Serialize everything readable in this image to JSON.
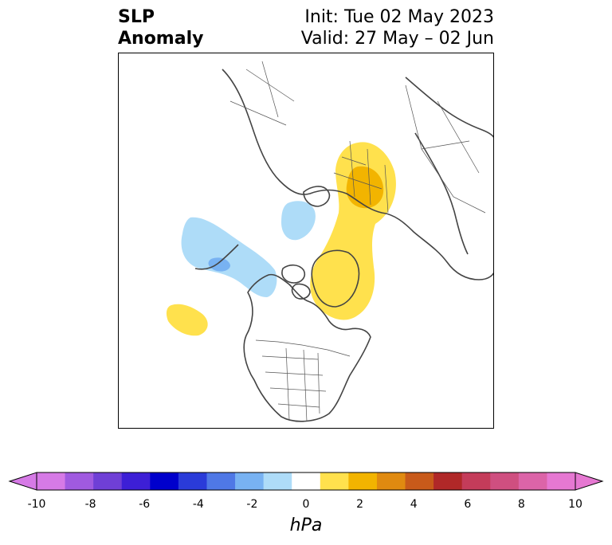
{
  "title": {
    "left_line1": "SLP",
    "left_line2": "Anomaly",
    "right_line1": "Init: Tue 02 May 2023",
    "right_line2": "Valid: 27 May – 02 Jun"
  },
  "colorbar": {
    "unit": "hPa",
    "ticks": [
      "-10",
      "-8",
      "-6",
      "-4",
      "-2",
      "0",
      "2",
      "4",
      "6",
      "8",
      "10"
    ],
    "levels": [
      {
        "color": "#d67ae6"
      },
      {
        "color": "#a05ae0"
      },
      {
        "color": "#6f3fd6"
      },
      {
        "color": "#3d1fd6"
      },
      {
        "color": "#0000cc"
      },
      {
        "color": "#2a3bd9"
      },
      {
        "color": "#4f78e6"
      },
      {
        "color": "#78b2f2"
      },
      {
        "color": "#aedcf8"
      },
      {
        "color": "#ffffff"
      },
      {
        "color": "#ffe14d"
      },
      {
        "color": "#f2b400"
      },
      {
        "color": "#e08a10"
      },
      {
        "color": "#c85a1a"
      },
      {
        "color": "#b02828"
      },
      {
        "color": "#c43c5a"
      },
      {
        "color": "#cf4f80"
      },
      {
        "color": "#dc64a8"
      },
      {
        "color": "#e678d2"
      }
    ],
    "extend_low_color": "#d67ae6",
    "extend_high_color": "#e678d2"
  },
  "map": {
    "projection": "north polar stereographic",
    "coastline_color": "#444444",
    "border_color": "#555555"
  }
}
